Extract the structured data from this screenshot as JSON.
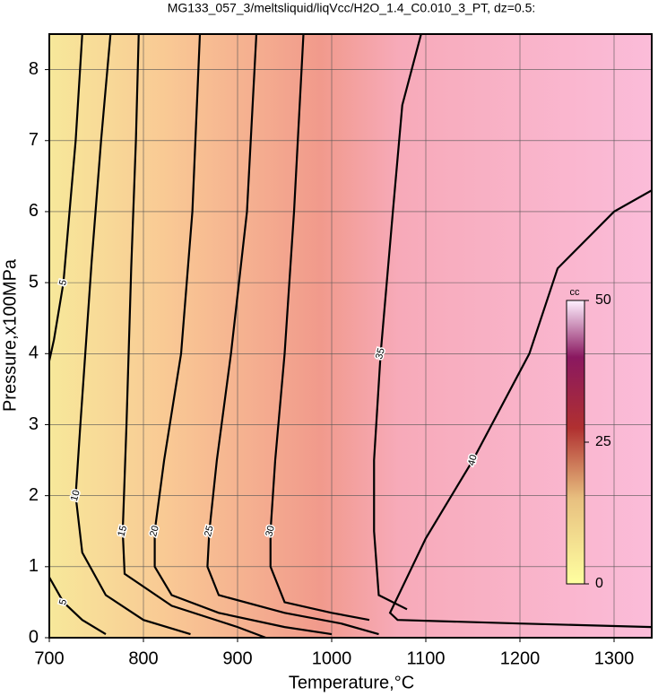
{
  "chart_data": {
    "type": "contour",
    "title": "MG133_057_3/meltsliquid/liqVcc/H2O_1.4_C0.010_3_PT, dz=0.5:",
    "x_label": "Temperature,°C",
    "y_label": "Pressure,x100MPa",
    "xlim": [
      700,
      1340
    ],
    "ylim": [
      0,
      8.5
    ],
    "xticks": [
      700,
      800,
      900,
      1000,
      1100,
      1200,
      1300
    ],
    "yticks": [
      0,
      1,
      2,
      3,
      4,
      5,
      6,
      7,
      8
    ],
    "grid": true,
    "contours": [
      {
        "level": 5,
        "x": [
          735,
          728,
          715,
          705,
          700
        ],
        "y": [
          8.5,
          7,
          5,
          4.2,
          3.9
        ]
      },
      {
        "level": 5,
        "x": [
          700,
          715,
          735,
          760
        ],
        "y": [
          0.85,
          0.5,
          0.25,
          0.05
        ]
      },
      {
        "level": 10,
        "x": [
          765,
          755,
          745,
          733,
          728,
          735,
          760,
          800,
          850
        ],
        "y": [
          8.5,
          7,
          5.3,
          3,
          2,
          1.2,
          0.6,
          0.25,
          0.05
        ]
      },
      {
        "level": 15,
        "x": [
          795,
          792,
          787,
          782,
          778,
          780,
          830,
          900,
          930
        ],
        "y": [
          8.5,
          7,
          5.2,
          3,
          1.5,
          0.9,
          0.45,
          0.15,
          0
        ]
      },
      {
        "level": 20,
        "x": [
          860,
          852,
          840,
          822,
          812,
          812,
          830,
          880,
          950,
          1000
        ],
        "y": [
          8.5,
          6,
          4,
          2.5,
          1.5,
          1,
          0.6,
          0.35,
          0.15,
          0.05
        ]
      },
      {
        "level": 25,
        "x": [
          920,
          910,
          893,
          878,
          870,
          868,
          880,
          950,
          1010,
          1050
        ],
        "y": [
          8.5,
          6,
          4,
          2.5,
          1.5,
          1,
          0.6,
          0.35,
          0.2,
          0.05
        ]
      },
      {
        "level": 30,
        "x": [
          970,
          960,
          950,
          940,
          935,
          935,
          950,
          1000,
          1040
        ],
        "y": [
          8.5,
          6,
          4,
          2.5,
          1.5,
          1,
          0.5,
          0.35,
          0.25
        ]
      },
      {
        "level": 35,
        "x": [
          1095,
          1075,
          1065,
          1052,
          1045,
          1045,
          1050,
          1080
        ],
        "y": [
          8.5,
          7.5,
          6,
          4,
          2.5,
          1.5,
          0.6,
          0.4
        ]
      },
      {
        "level": 40,
        "x": [
          1340,
          1300,
          1240,
          1210,
          1150,
          1100,
          1062,
          1070,
          1200,
          1340
        ],
        "y": [
          6.3,
          6,
          5.2,
          4,
          2.5,
          1.4,
          0.35,
          0.25,
          0.2,
          0.15
        ]
      }
    ],
    "colorbar": {
      "label": "cc",
      "lim": [
        0,
        50
      ],
      "ticks": [
        0,
        25,
        50
      ]
    }
  }
}
